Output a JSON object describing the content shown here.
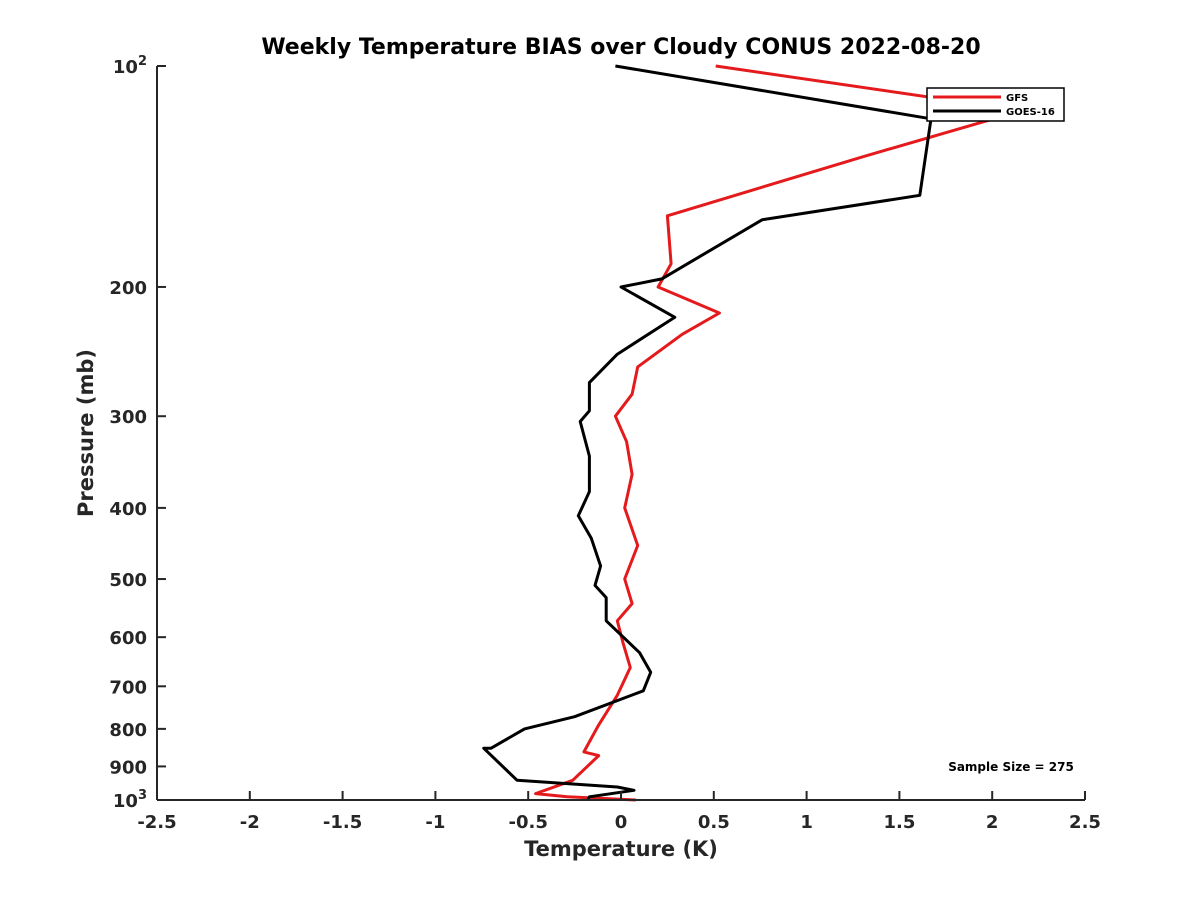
{
  "chart_data": {
    "type": "line",
    "title": "Weekly Temperature BIAS over Cloudy CONUS 2022-08-20",
    "xlabel": "Temperature (K)",
    "ylabel": "Pressure (mb)",
    "xlim": [
      -2.5,
      2.5
    ],
    "ylim": [
      100,
      1000
    ],
    "yscale": "log",
    "y_reversed": true,
    "grid": false,
    "legend_placement": "top-right",
    "x_ticks": [
      "-2.5",
      "-2",
      "-1.5",
      "-1",
      "-0.5",
      "0",
      "0.5",
      "1",
      "1.5",
      "2",
      "2.5"
    ],
    "x_tick_values": [
      -2.5,
      -2,
      -1.5,
      -1,
      -0.5,
      0,
      0.5,
      1,
      1.5,
      2,
      2.5
    ],
    "y_ticks": [
      {
        "value": 100,
        "base": "10",
        "exp": "2"
      },
      {
        "value": 200,
        "label": "200"
      },
      {
        "value": 300,
        "label": "300"
      },
      {
        "value": 400,
        "label": "400"
      },
      {
        "value": 500,
        "label": "500"
      },
      {
        "value": 600,
        "label": "600"
      },
      {
        "value": 700,
        "label": "700"
      },
      {
        "value": 800,
        "label": "800"
      },
      {
        "value": 900,
        "label": "900"
      },
      {
        "value": 1000,
        "base": "10",
        "exp": "3"
      }
    ],
    "annotation": "Sample Size = 275",
    "series": [
      {
        "name": "GFS",
        "color": "#e41a1c",
        "points": [
          [
            0.51,
            100
          ],
          [
            2.16,
            115
          ],
          [
            1.3,
            133
          ],
          [
            0.25,
            160
          ],
          [
            0.27,
            186
          ],
          [
            0.2,
            200
          ],
          [
            0.53,
            217
          ],
          [
            0.33,
            232
          ],
          [
            0.09,
            257
          ],
          [
            0.06,
            280
          ],
          [
            -0.03,
            300
          ],
          [
            0.03,
            325
          ],
          [
            0.06,
            360
          ],
          [
            0.02,
            400
          ],
          [
            0.09,
            450
          ],
          [
            0.02,
            500
          ],
          [
            0.06,
            540
          ],
          [
            -0.02,
            570
          ],
          [
            0.01,
            610
          ],
          [
            0.05,
            660
          ],
          [
            -0.02,
            720
          ],
          [
            -0.12,
            790
          ],
          [
            -0.2,
            860
          ],
          [
            -0.12,
            870
          ],
          [
            -0.26,
            940
          ],
          [
            -0.46,
            980
          ],
          [
            -0.29,
            990
          ],
          [
            0.08,
            1000
          ]
        ]
      },
      {
        "name": "GOES-16",
        "color": "#000000",
        "points": [
          [
            -0.03,
            100
          ],
          [
            1.67,
            118
          ],
          [
            1.61,
            150
          ],
          [
            0.76,
            162
          ],
          [
            0.22,
            195
          ],
          [
            0.0,
            200
          ],
          [
            0.29,
            220
          ],
          [
            -0.02,
            247
          ],
          [
            -0.17,
            270
          ],
          [
            -0.17,
            295
          ],
          [
            -0.22,
            305
          ],
          [
            -0.17,
            340
          ],
          [
            -0.17,
            380
          ],
          [
            -0.23,
            410
          ],
          [
            -0.16,
            440
          ],
          [
            -0.11,
            480
          ],
          [
            -0.14,
            510
          ],
          [
            -0.08,
            530
          ],
          [
            -0.08,
            570
          ],
          [
            0.1,
            630
          ],
          [
            0.16,
            670
          ],
          [
            0.12,
            710
          ],
          [
            -0.25,
            770
          ],
          [
            -0.52,
            800
          ],
          [
            -0.7,
            850
          ],
          [
            -0.74,
            850
          ],
          [
            -0.56,
            940
          ],
          [
            -0.02,
            960
          ],
          [
            0.07,
            970
          ],
          [
            -0.17,
            990
          ],
          [
            -0.18,
            1000
          ]
        ]
      }
    ]
  }
}
